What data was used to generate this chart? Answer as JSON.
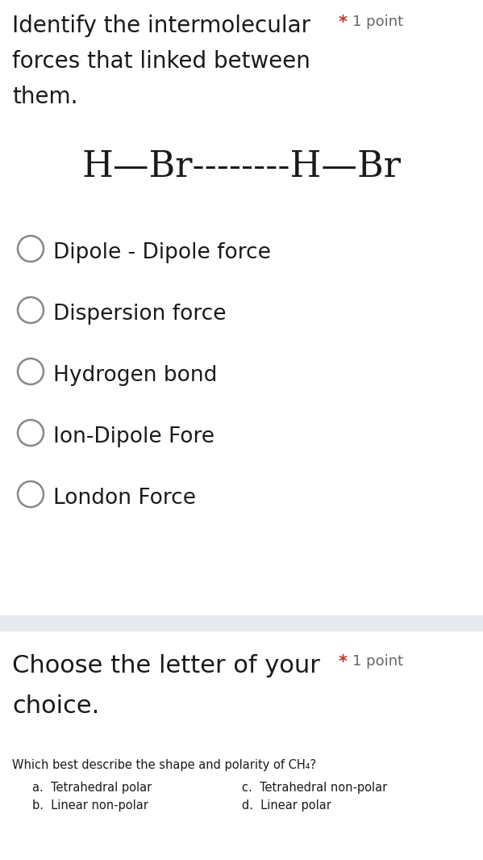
{
  "bg_color": "#ffffff",
  "section1_title_line1": "Identify the intermolecular",
  "section1_title_line2": "forces that linked between",
  "section1_title_line3": "them.",
  "star_color": "#c0392b",
  "point_text": "1 point",
  "molecule_text": "H—Br--------H—Br",
  "options": [
    "Dipole - Dipole force",
    "Dispersion force",
    "Hydrogen bond",
    "Ion-Dipole Fore",
    "London Force"
  ],
  "divider_color": "#e8eaf0",
  "section2_title_line1": "Choose the letter of your",
  "section2_title_line2": "choice.",
  "question_text": "Which best describe the shape and polarity of CH₄?",
  "answer_a": "a.  Tetrahedral polar",
  "answer_b": "b.  Linear non-polar",
  "answer_c": "c.  Tetrahedral non-polar",
  "answer_d": "d.  Linear polar",
  "title_fontsize": 20,
  "option_fontsize": 19,
  "molecule_fontsize": 32,
  "question_fontsize": 10.5,
  "point_fontsize": 13,
  "circle_edge_color": "#888888",
  "circle_linewidth": 1.8,
  "text_color": "#1a1a1a",
  "gray_text_color": "#666666"
}
